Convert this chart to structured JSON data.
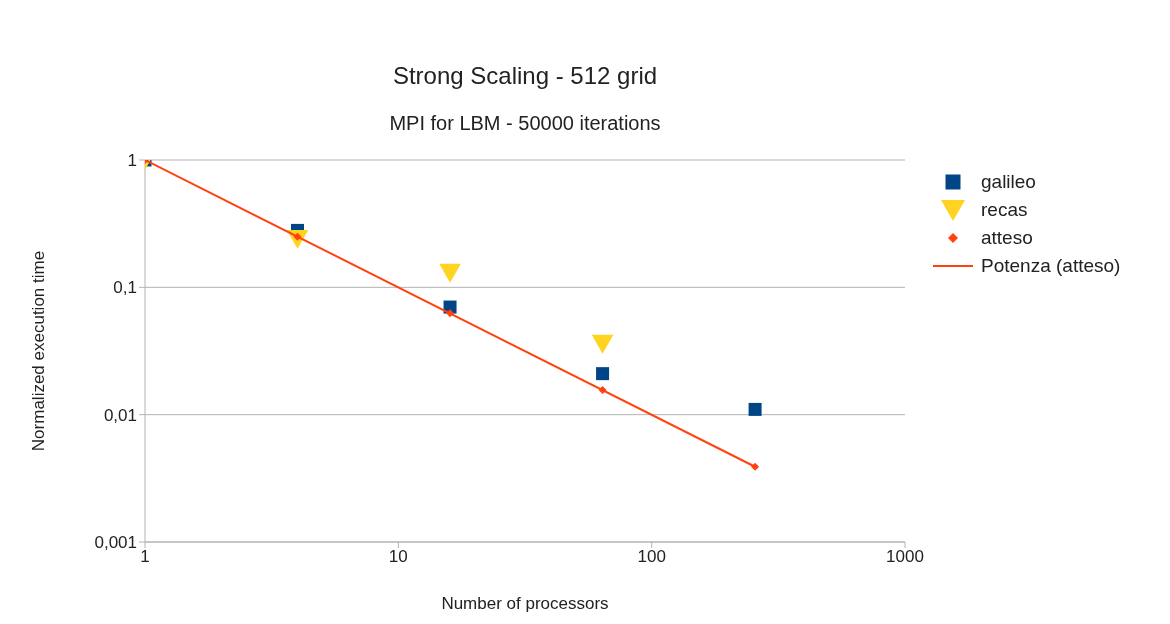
{
  "chart_data": {
    "type": "scatter",
    "title": "Strong Scaling - 512 grid",
    "subtitle": "MPI for LBM - 50000 iterations",
    "xlabel": "Number of processors",
    "ylabel": "Normalized execution time",
    "log": "xy",
    "grid": "y",
    "legend": "right",
    "xlim": [
      1,
      1000
    ],
    "xticks": [
      1,
      10,
      100,
      1000
    ],
    "ylim": [
      0.001,
      1
    ],
    "yticks": [
      {
        "value": 0.001,
        "label": "0,001"
      },
      {
        "value": 0.01,
        "label": "0,01"
      },
      {
        "value": 0.1,
        "label": "0,1"
      },
      1
    ],
    "series": [
      {
        "name": "galileo",
        "color": "#004586",
        "marker": "square",
        "x": [
          1,
          4,
          16,
          64,
          256
        ],
        "values": [
          1,
          0.28,
          0.07,
          0.021,
          0.011
        ]
      },
      {
        "name": "recas",
        "color": "#ffd320",
        "marker": "triangle",
        "x": [
          1,
          4,
          16,
          64
        ],
        "values": [
          1,
          0.24,
          0.13,
          0.036
        ]
      },
      {
        "name": "atteso",
        "color": "#ff420e",
        "marker": "diamond",
        "x": [
          1,
          4,
          16,
          64,
          256
        ],
        "values": [
          1,
          0.25,
          0.0625,
          0.0156,
          0.0039
        ]
      },
      {
        "name": "Potenza (atteso)",
        "type": "line",
        "color": "#ff420e",
        "marker": "none",
        "line_style": "solid",
        "x": [
          1,
          256
        ],
        "values": [
          1,
          0.0039
        ]
      }
    ]
  }
}
